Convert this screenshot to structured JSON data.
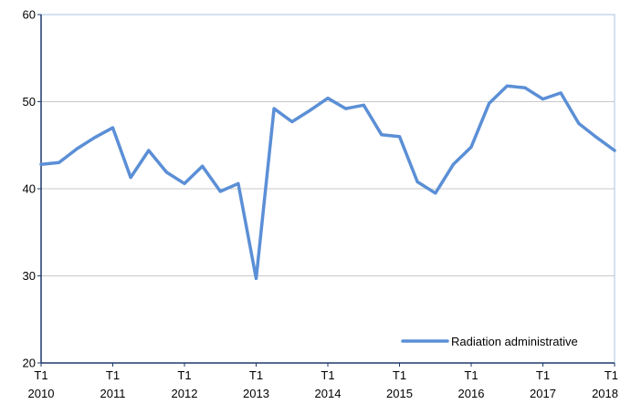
{
  "chart_data": {
    "type": "line",
    "title": "",
    "xlabel": "",
    "ylabel": "",
    "ylim": [
      20,
      60
    ],
    "yticks": [
      20,
      30,
      40,
      50,
      60
    ],
    "grid": "horizontal",
    "legend_position": "bottom-right",
    "x_tick_labels": [
      [
        "T1",
        "2010"
      ],
      [
        "T1",
        "2011"
      ],
      [
        "T1",
        "2012"
      ],
      [
        "T1",
        "2013"
      ],
      [
        "T1",
        "2014"
      ],
      [
        "T1",
        "2015"
      ],
      [
        "T1",
        "2016"
      ],
      [
        "T1",
        "2017"
      ],
      [
        "T1",
        "2018"
      ]
    ],
    "x_quarters": [
      "2010 T1",
      "2010 T2",
      "2010 T3",
      "2010 T4",
      "2011 T1",
      "2011 T2",
      "2011 T3",
      "2011 T4",
      "2012 T1",
      "2012 T2",
      "2012 T3",
      "2012 T4",
      "2013 T1",
      "2013 T2",
      "2013 T3",
      "2013 T4",
      "2014 T1",
      "2014 T2",
      "2014 T3",
      "2014 T4",
      "2015 T1",
      "2015 T2",
      "2015 T3",
      "2015 T4",
      "2016 T1",
      "2016 T2",
      "2016 T3",
      "2016 T4",
      "2017 T1",
      "2017 T2",
      "2017 T3",
      "2017 T4",
      "2018 T1"
    ],
    "series": [
      {
        "name": "Radiation administrative",
        "color": "#5b8fd6",
        "values": [
          42.8,
          43.0,
          44.6,
          45.9,
          47.0,
          41.3,
          44.4,
          41.9,
          40.6,
          42.6,
          39.7,
          40.6,
          29.7,
          49.2,
          47.7,
          49.0,
          50.4,
          49.2,
          49.6,
          46.2,
          46.0,
          40.8,
          39.5,
          42.8,
          44.8,
          49.8,
          51.8,
          51.6,
          50.3,
          51.0,
          47.5,
          45.9,
          44.4
        ]
      }
    ]
  }
}
